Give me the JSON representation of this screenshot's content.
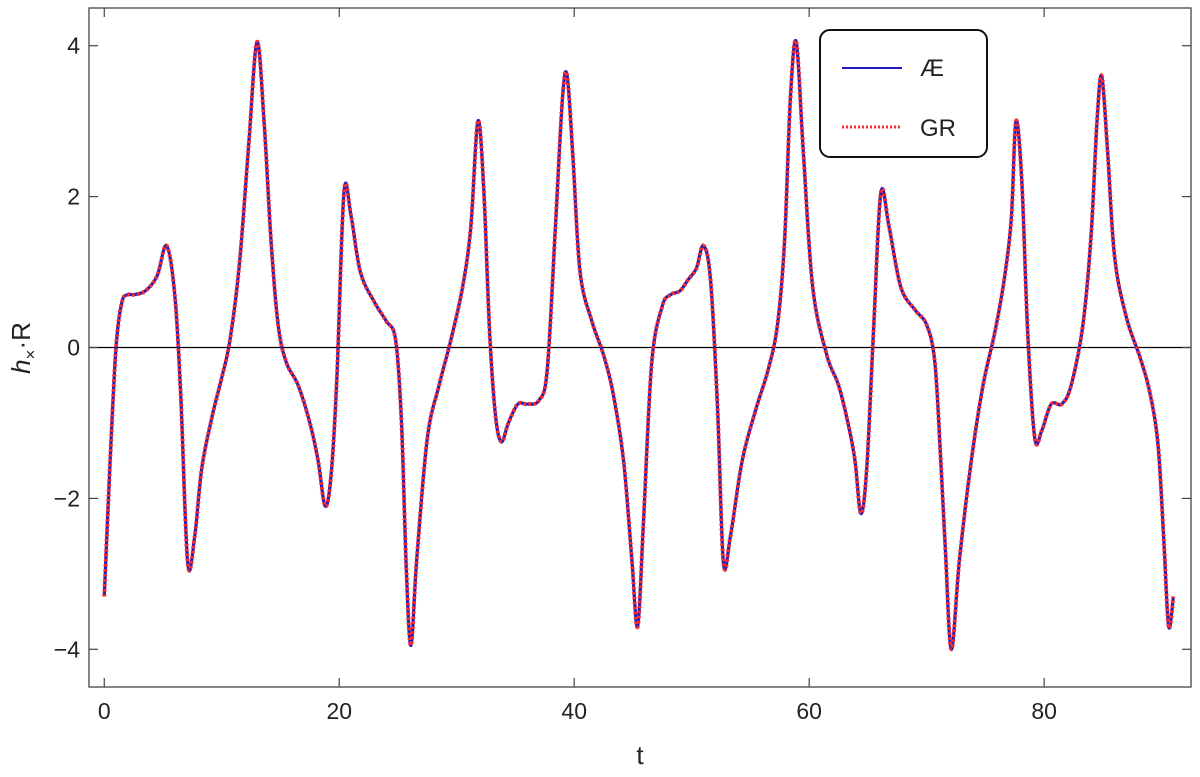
{
  "chart_data": {
    "type": "line",
    "title": "",
    "xlabel": "t",
    "ylabel_main": "h",
    "ylabel_sub": "×",
    "ylabel_rest": "·R",
    "xlim": [
      -1.3,
      92.5
    ],
    "ylim": [
      -4.5,
      4.5
    ],
    "xticks": [
      0,
      20,
      40,
      60,
      80
    ],
    "xtick_labels": [
      "0",
      "20",
      "40",
      "60",
      "80"
    ],
    "yticks": [
      -4,
      -2,
      0,
      2,
      4
    ],
    "ytick_labels": [
      "−4",
      "−2",
      "0",
      "2",
      "4"
    ],
    "grid": false,
    "zero_line": true,
    "legend_position": "top-right",
    "colors": {
      "AE": "#1f1fbf",
      "GR": "#ff2a2a"
    },
    "series": [
      {
        "name": "Æ",
        "style": "solid",
        "x": [
          0,
          0.5,
          1.0,
          1.5,
          2.0,
          2.5,
          3.5,
          4.5,
          5.3,
          6.0,
          6.5,
          7.1,
          7.7,
          8.3,
          9.2,
          10.0,
          10.7,
          11.5,
          12.3,
          13.0,
          13.6,
          14.2,
          14.8,
          15.5,
          16.5,
          17.5,
          18.2,
          18.8,
          19.3,
          19.8,
          20.4,
          21.0,
          21.8,
          23.0,
          24.0,
          24.8,
          25.3,
          25.7,
          26.1,
          26.6,
          27.5,
          28.5,
          29.5,
          30.5,
          31.2,
          31.8,
          32.3,
          32.8,
          33.3,
          33.8,
          34.4,
          35.2,
          36.0,
          37.0,
          37.7,
          38.4,
          39.0,
          39.4,
          39.9,
          40.5,
          41.5,
          42.5,
          43.3,
          44.2,
          44.9,
          45.4,
          45.9,
          46.6,
          47.5,
          48.2,
          49.0,
          49.7,
          50.4,
          51.0,
          51.6,
          52.2,
          52.7,
          53.3,
          54.3,
          55.5,
          56.5,
          57.3,
          57.9,
          58.4,
          58.9,
          59.5,
          60.3,
          61.5,
          62.5,
          63.3,
          63.9,
          64.4,
          64.9,
          65.5,
          66.1,
          66.8,
          67.8,
          69.0,
          70.0,
          70.7,
          71.2,
          71.6,
          72.1,
          72.8,
          73.8,
          74.8,
          75.8,
          76.6,
          77.2,
          77.6,
          78.1,
          78.6,
          79.2,
          79.8,
          80.6,
          81.5,
          82.3,
          83.3,
          84.0,
          84.5,
          84.9,
          85.4,
          86.0,
          87.0,
          88.2,
          89.0,
          89.7,
          90.2,
          90.6,
          91.0
        ],
        "y": [
          -3.3,
          -1.5,
          0.0,
          0.6,
          0.7,
          0.7,
          0.75,
          0.95,
          1.35,
          0.7,
          -0.6,
          -2.85,
          -2.5,
          -1.6,
          -0.9,
          -0.4,
          0.1,
          1.1,
          2.7,
          4.05,
          3.0,
          1.4,
          0.3,
          -0.2,
          -0.5,
          -1.0,
          -1.5,
          -2.1,
          -1.7,
          -0.4,
          2.05,
          1.75,
          1.0,
          0.6,
          0.35,
          0.1,
          -1.0,
          -2.9,
          -3.95,
          -2.8,
          -1.2,
          -0.5,
          0.1,
          0.8,
          1.6,
          3.0,
          2.1,
          0.2,
          -0.9,
          -1.25,
          -1.0,
          -0.75,
          -0.75,
          -0.7,
          -0.3,
          1.6,
          3.3,
          3.6,
          2.5,
          1.0,
          0.35,
          -0.1,
          -0.6,
          -1.5,
          -2.8,
          -3.7,
          -2.3,
          -0.2,
          0.55,
          0.7,
          0.75,
          0.9,
          1.05,
          1.35,
          0.9,
          -0.8,
          -2.85,
          -2.5,
          -1.5,
          -0.8,
          -0.3,
          0.3,
          1.4,
          3.3,
          4.05,
          2.6,
          0.8,
          -0.1,
          -0.5,
          -1.0,
          -1.5,
          -2.2,
          -1.6,
          0.3,
          2.05,
          1.6,
          0.8,
          0.5,
          0.3,
          -0.2,
          -1.5,
          -2.7,
          -4.0,
          -2.8,
          -1.5,
          -0.5,
          0.2,
          0.9,
          1.7,
          3.0,
          2.2,
          0.2,
          -1.2,
          -1.1,
          -0.75,
          -0.75,
          -0.5,
          0.3,
          1.5,
          3.0,
          3.6,
          2.6,
          1.2,
          0.4,
          -0.15,
          -0.6,
          -1.3,
          -2.6,
          -3.7,
          -3.3
        ]
      },
      {
        "name": "GR",
        "style": "dotted",
        "x": [
          0,
          0.5,
          1.0,
          1.5,
          2.0,
          2.5,
          3.5,
          4.5,
          5.3,
          6.0,
          6.5,
          7.1,
          7.7,
          8.3,
          9.2,
          10.0,
          10.7,
          11.5,
          12.3,
          13.0,
          13.6,
          14.2,
          14.8,
          15.5,
          16.5,
          17.5,
          18.2,
          18.8,
          19.3,
          19.8,
          20.4,
          21.0,
          21.8,
          23.0,
          24.0,
          24.8,
          25.3,
          25.7,
          26.1,
          26.6,
          27.5,
          28.5,
          29.5,
          30.5,
          31.2,
          31.8,
          32.3,
          32.8,
          33.3,
          33.8,
          34.4,
          35.2,
          36.0,
          37.0,
          37.7,
          38.4,
          39.0,
          39.4,
          39.9,
          40.5,
          41.5,
          42.5,
          43.3,
          44.2,
          44.9,
          45.4,
          45.9,
          46.6,
          47.5,
          48.2,
          49.0,
          49.7,
          50.4,
          51.0,
          51.6,
          52.2,
          52.7,
          53.3,
          54.3,
          55.5,
          56.5,
          57.3,
          57.9,
          58.4,
          58.9,
          59.5,
          60.3,
          61.5,
          62.5,
          63.3,
          63.9,
          64.4,
          64.9,
          65.5,
          66.1,
          66.8,
          67.8,
          69.0,
          70.0,
          70.7,
          71.2,
          71.6,
          72.1,
          72.8,
          73.8,
          74.8,
          75.8,
          76.6,
          77.2,
          77.6,
          78.1,
          78.6,
          79.2,
          79.8,
          80.6,
          81.5,
          82.3,
          83.3,
          84.0,
          84.5,
          84.9,
          85.4,
          86.0,
          87.0,
          88.2,
          89.0,
          89.7,
          90.2,
          90.6,
          91.0
        ],
        "y": [
          -3.3,
          -1.5,
          0.0,
          0.6,
          0.7,
          0.7,
          0.75,
          0.95,
          1.35,
          0.7,
          -0.6,
          -2.85,
          -2.5,
          -1.6,
          -0.9,
          -0.4,
          0.1,
          1.1,
          2.7,
          4.05,
          3.0,
          1.4,
          0.3,
          -0.2,
          -0.5,
          -1.0,
          -1.5,
          -2.1,
          -1.7,
          -0.4,
          2.05,
          1.75,
          1.0,
          0.6,
          0.35,
          0.1,
          -1.0,
          -2.9,
          -3.95,
          -2.8,
          -1.2,
          -0.5,
          0.1,
          0.8,
          1.6,
          3.0,
          2.1,
          0.2,
          -0.9,
          -1.25,
          -1.0,
          -0.75,
          -0.75,
          -0.7,
          -0.3,
          1.6,
          3.3,
          3.6,
          2.5,
          1.0,
          0.35,
          -0.1,
          -0.6,
          -1.5,
          -2.8,
          -3.7,
          -2.3,
          -0.2,
          0.55,
          0.7,
          0.75,
          0.9,
          1.05,
          1.35,
          0.9,
          -0.8,
          -2.85,
          -2.5,
          -1.5,
          -0.8,
          -0.3,
          0.3,
          1.4,
          3.3,
          4.05,
          2.6,
          0.8,
          -0.1,
          -0.5,
          -1.0,
          -1.5,
          -2.2,
          -1.6,
          0.3,
          2.05,
          1.6,
          0.8,
          0.5,
          0.3,
          -0.2,
          -1.5,
          -2.7,
          -4.0,
          -2.8,
          -1.5,
          -0.5,
          0.2,
          0.9,
          1.7,
          3.0,
          2.2,
          0.2,
          -1.2,
          -1.1,
          -0.75,
          -0.75,
          -0.5,
          0.3,
          1.5,
          3.0,
          3.6,
          2.6,
          1.2,
          0.4,
          -0.15,
          -0.6,
          -1.3,
          -2.6,
          -3.7,
          -3.3
        ]
      }
    ]
  }
}
